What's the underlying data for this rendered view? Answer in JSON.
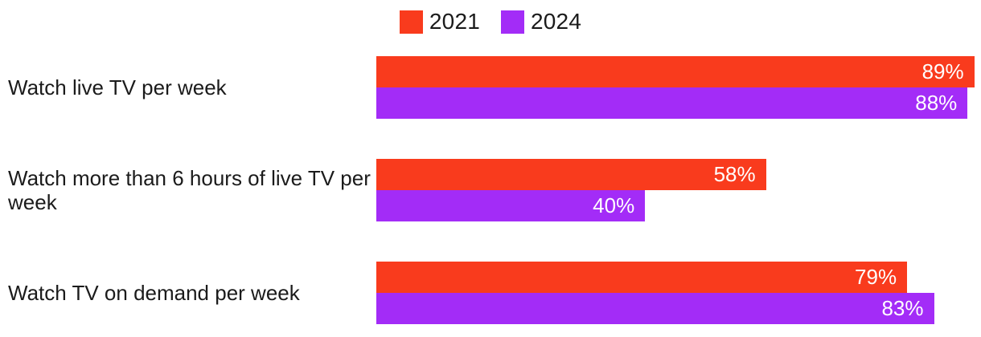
{
  "chart_data": {
    "type": "bar",
    "orientation": "horizontal",
    "title": "",
    "legend_position": "top",
    "grid": false,
    "xlim": [
      0,
      90
    ],
    "value_suffix": "%",
    "categories": [
      "Watch live TV per week",
      "Watch more than 6 hours of live TV per\nweek",
      "Watch TV on demand per week"
    ],
    "series": [
      {
        "name": "2021",
        "color": "#f93b1d",
        "values": [
          89,
          58,
          79
        ]
      },
      {
        "name": "2024",
        "color": "#a32cf7",
        "values": [
          88,
          40,
          83
        ]
      }
    ],
    "value_labels": [
      [
        "89%",
        "88%"
      ],
      [
        "58%",
        "40%"
      ],
      [
        "79%",
        "83%"
      ]
    ]
  },
  "colors": {
    "background": "#ffffff",
    "label_text": "#1b1b1b",
    "bar_value_text": "#ffffff"
  }
}
